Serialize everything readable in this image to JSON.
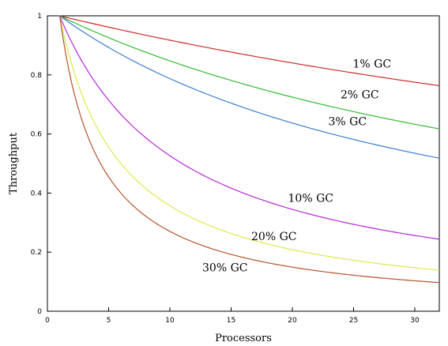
{
  "chart_data": {
    "type": "line",
    "title": "",
    "xlabel": "Processors",
    "ylabel": "Throughput",
    "xlim": [
      0,
      32
    ],
    "ylim": [
      0,
      1
    ],
    "xticks": [
      0,
      5,
      10,
      15,
      20,
      25,
      30
    ],
    "yticks": [
      0,
      0.2,
      0.4,
      0.6,
      0.8,
      1
    ],
    "xtick_labels": [
      "0",
      "5",
      "10",
      "15",
      "20",
      "25",
      "30"
    ],
    "ytick_labels": [
      "0",
      "0.2",
      "0.4",
      "0.6",
      "0.8",
      "1"
    ],
    "grid": false,
    "legend": "none",
    "x": [
      1,
      2,
      3,
      4,
      5,
      6,
      7,
      8,
      9,
      10,
      11,
      12,
      13,
      14,
      15,
      16,
      17,
      18,
      19,
      20,
      21,
      22,
      23,
      24,
      25,
      26,
      27,
      28,
      29,
      30,
      31,
      32
    ],
    "series": [
      {
        "name": "1% GC",
        "color": "#cc2a2a",
        "gc": 0.01,
        "values": [
          1.0,
          0.99,
          0.981,
          0.971,
          0.962,
          0.952,
          0.943,
          0.935,
          0.926,
          0.917,
          0.909,
          0.901,
          0.893,
          0.885,
          0.877,
          0.87,
          0.862,
          0.855,
          0.847,
          0.84,
          0.833,
          0.826,
          0.82,
          0.813,
          0.806,
          0.8,
          0.794,
          0.787,
          0.781,
          0.775,
          0.769,
          0.763
        ]
      },
      {
        "name": "2% GC",
        "color": "#33bb33",
        "gc": 0.02,
        "values": [
          1.0,
          0.98,
          0.962,
          0.943,
          0.926,
          0.909,
          0.893,
          0.877,
          0.862,
          0.847,
          0.833,
          0.82,
          0.806,
          0.794,
          0.781,
          0.769,
          0.758,
          0.746,
          0.735,
          0.725,
          0.714,
          0.704,
          0.694,
          0.685,
          0.676,
          0.667,
          0.658,
          0.649,
          0.641,
          0.633,
          0.625,
          0.617
        ]
      },
      {
        "name": "3% GC",
        "color": "#3a7fd0",
        "gc": 0.03,
        "values": [
          1.0,
          0.971,
          0.943,
          0.917,
          0.893,
          0.87,
          0.847,
          0.826,
          0.806,
          0.787,
          0.769,
          0.752,
          0.735,
          0.719,
          0.704,
          0.69,
          0.676,
          0.662,
          0.649,
          0.637,
          0.625,
          0.613,
          0.602,
          0.592,
          0.581,
          0.571,
          0.562,
          0.552,
          0.543,
          0.535,
          0.526,
          0.518
        ]
      },
      {
        "name": "10% GC",
        "color": "#b528d8",
        "gc": 0.1,
        "values": [
          1.0,
          0.909,
          0.833,
          0.769,
          0.714,
          0.667,
          0.625,
          0.588,
          0.556,
          0.526,
          0.5,
          0.476,
          0.455,
          0.435,
          0.417,
          0.4,
          0.385,
          0.37,
          0.357,
          0.345,
          0.333,
          0.323,
          0.313,
          0.303,
          0.294,
          0.286,
          0.278,
          0.27,
          0.263,
          0.256,
          0.25,
          0.244
        ]
      },
      {
        "name": "20% GC",
        "color": "#dde84a",
        "gc": 0.2,
        "values": [
          1.0,
          0.833,
          0.714,
          0.625,
          0.556,
          0.5,
          0.455,
          0.417,
          0.385,
          0.357,
          0.333,
          0.313,
          0.294,
          0.278,
          0.263,
          0.25,
          0.238,
          0.227,
          0.217,
          0.208,
          0.2,
          0.192,
          0.185,
          0.179,
          0.172,
          0.167,
          0.161,
          0.156,
          0.152,
          0.147,
          0.143,
          0.139
        ]
      },
      {
        "name": "30% GC",
        "color": "#b5532e",
        "gc": 0.3,
        "values": [
          1.0,
          0.769,
          0.625,
          0.526,
          0.455,
          0.4,
          0.357,
          0.323,
          0.294,
          0.27,
          0.25,
          0.233,
          0.217,
          0.204,
          0.192,
          0.182,
          0.172,
          0.164,
          0.156,
          0.149,
          0.143,
          0.137,
          0.132,
          0.127,
          0.122,
          0.118,
          0.114,
          0.11,
          0.106,
          0.103,
          0.1,
          0.097
        ]
      }
    ]
  }
}
